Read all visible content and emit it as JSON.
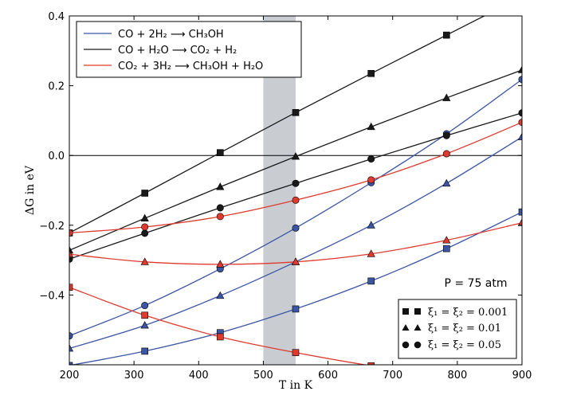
{
  "chart_data": {
    "type": "line",
    "xlabel": "T in K",
    "ylabel": "ΔG in eV",
    "xlim": [
      200,
      900
    ],
    "ylim": [
      -0.6,
      0.4
    ],
    "xticks": [
      200,
      300,
      400,
      500,
      600,
      700,
      800,
      900
    ],
    "yticks": [
      -0.4,
      -0.2,
      0.0,
      0.2,
      0.4
    ],
    "ytick_labels": [
      "−0.4",
      "−0.2",
      "0.0",
      "0.2",
      "0.4"
    ],
    "zero_line": 0.0,
    "shaded_region": {
      "x": [
        500,
        550
      ],
      "color": "#c9cdd2"
    },
    "annotation": "P = 75 atm",
    "reactions": [
      {
        "label": "CO + 2H₂ ⟶ CH₃OH",
        "color": "#3c55a5"
      },
      {
        "label": "CO + H₂O ⟶ CO₂ + H₂",
        "color": "#1a1a1a"
      },
      {
        "label": "CO₂ + 3H₂ ⟶ CH₃OH + H₂O",
        "color": "#e03a2f"
      }
    ],
    "marker_legend": [
      {
        "marker": "square",
        "label": "ξ₁ = ξ₂ = 0.001"
      },
      {
        "marker": "triangle",
        "label": "ξ₁ = ξ₂ = 0.01"
      },
      {
        "marker": "circle",
        "label": "ξ₁ = ξ₂ = 0.05"
      }
    ],
    "series": [
      {
        "reaction": 0,
        "marker": "square",
        "color": "#3c55a5",
        "x": [
          200,
          316.7,
          433.3,
          550,
          666.7,
          783.3,
          900
        ],
        "y": [
          -0.602,
          -0.561,
          -0.508,
          -0.44,
          -0.36,
          -0.267,
          -0.162
        ]
      },
      {
        "reaction": 0,
        "marker": "triangle",
        "color": "#3c55a5",
        "x": [
          200,
          316.7,
          433.3,
          550,
          666.7,
          783.3,
          900
        ],
        "y": [
          -0.553,
          -0.487,
          -0.402,
          -0.305,
          -0.2,
          -0.08,
          0.053
        ]
      },
      {
        "reaction": 0,
        "marker": "circle",
        "color": "#3c55a5",
        "x": [
          200,
          316.7,
          433.3,
          550,
          666.7,
          783.3,
          900
        ],
        "y": [
          -0.517,
          -0.43,
          -0.325,
          -0.208,
          -0.078,
          0.062,
          0.218
        ]
      },
      {
        "reaction": 1,
        "marker": "square",
        "color": "#1a1a1a",
        "x": [
          200,
          316.7,
          433.3,
          550,
          666.7,
          783.3,
          900
        ],
        "y": [
          -0.222,
          -0.108,
          0.008,
          0.123,
          0.235,
          0.345,
          0.455
        ]
      },
      {
        "reaction": 1,
        "marker": "triangle",
        "color": "#1a1a1a",
        "x": [
          200,
          316.7,
          433.3,
          550,
          666.7,
          783.3,
          900
        ],
        "y": [
          -0.272,
          -0.18,
          -0.09,
          -0.003,
          0.082,
          0.165,
          0.245
        ]
      },
      {
        "reaction": 1,
        "marker": "circle",
        "color": "#1a1a1a",
        "x": [
          200,
          316.7,
          433.3,
          550,
          666.7,
          783.3,
          900
        ],
        "y": [
          -0.297,
          -0.223,
          -0.15,
          -0.08,
          -0.01,
          0.057,
          0.122
        ]
      },
      {
        "reaction": 2,
        "marker": "square",
        "color": "#e03a2f",
        "x": [
          200,
          316.7,
          433.3,
          550,
          666.7,
          783.3,
          900
        ],
        "y": [
          -0.378,
          -0.458,
          -0.52,
          -0.565,
          -0.603,
          -0.635,
          -0.66
        ]
      },
      {
        "reaction": 2,
        "marker": "triangle",
        "color": "#e03a2f",
        "x": [
          200,
          316.7,
          433.3,
          550,
          666.7,
          783.3,
          900
        ],
        "y": [
          -0.283,
          -0.305,
          -0.312,
          -0.305,
          -0.282,
          -0.243,
          -0.193
        ]
      },
      {
        "reaction": 2,
        "marker": "circle",
        "color": "#e03a2f",
        "x": [
          200,
          316.7,
          433.3,
          550,
          666.7,
          783.3,
          900
        ],
        "y": [
          -0.222,
          -0.205,
          -0.175,
          -0.128,
          -0.07,
          0.005,
          0.095
        ]
      }
    ]
  }
}
